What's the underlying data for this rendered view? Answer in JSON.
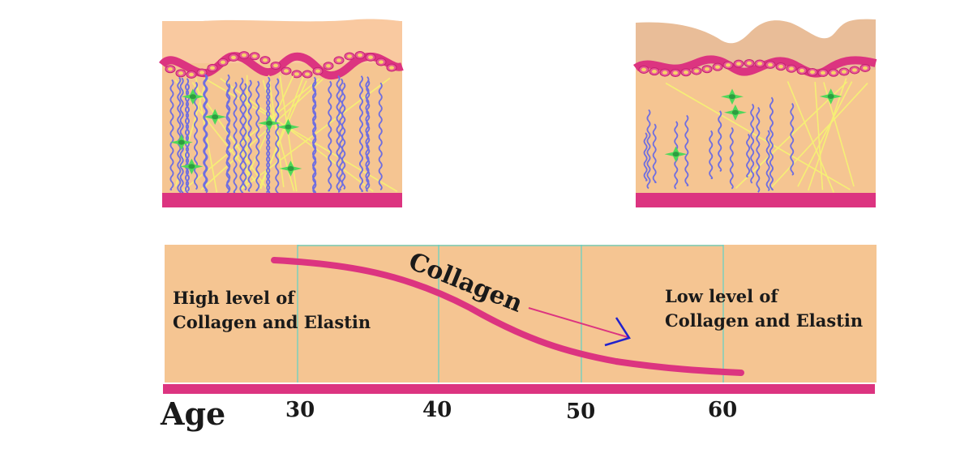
{
  "colors": {
    "skin_surface": "#f9c9a0",
    "skin_upper_aged": "#e9bd98",
    "dermis": "#f5c592",
    "basement": "#dc3480",
    "cell_outline": "#e85a96",
    "cell_nucleus": "#f5d36a",
    "elastin": "#6f6ee0",
    "collagen_fiber": "#f5f075",
    "fibroblast": "#4fd85a",
    "fibroblast_nucleus": "#2e9d40",
    "grid_line": "#5ed3c8",
    "curve": "#dc3480",
    "arrow_line": "#dc3480",
    "arrow_head": "#2222cc",
    "collagen_label": "#6b3a1e",
    "text": "#1a1a1a"
  },
  "icons": [
    "young-skin-cross-section",
    "aged-skin-cross-section",
    "fibroblast-cell",
    "elastin-fiber",
    "collagen-fiber"
  ],
  "graph": {
    "curve_label": "Collagen",
    "left_label_line1": "High level of",
    "left_label_line2": "Collagen and Elastin",
    "right_label_line1": "Low level of",
    "right_label_line2": "Collagen and Elastin",
    "axis_title": "Age",
    "ticks": [
      "30",
      "40",
      "50",
      "60"
    ]
  }
}
